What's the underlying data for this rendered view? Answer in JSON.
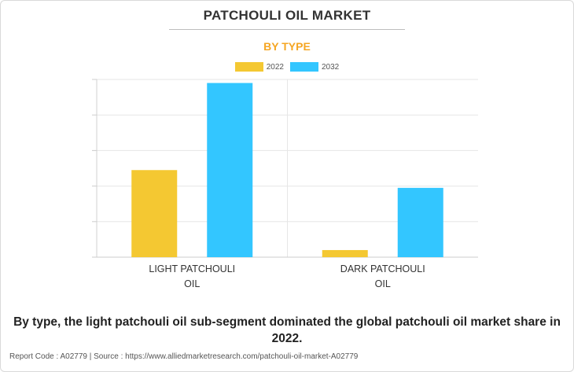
{
  "title": "PATCHOULI OIL MARKET",
  "subtitle": "BY TYPE",
  "caption": "By type, the light patchouli oil sub-segment dominated the global patchouli oil market share in 2022.",
  "footer": "Report Code : A02779  |  Source : https://www.alliedmarketresearch.com/patchouli-oil-market-A02779",
  "colors": {
    "2022": "#f4c832",
    "2032": "#33c6ff",
    "accent": "#f5a623"
  },
  "chart_data": {
    "type": "bar",
    "categories": [
      [
        "LIGHT PATCHOULI",
        "OIL"
      ],
      [
        "DARK PATCHOULI",
        "OIL"
      ]
    ],
    "series": [
      {
        "name": "2022",
        "values": [
          49,
          4
        ]
      },
      {
        "name": "2032",
        "values": [
          98,
          39
        ]
      }
    ],
    "ylim": [
      0,
      100
    ],
    "y_ticks": [
      0,
      20,
      40,
      60,
      80,
      100
    ],
    "tick_labels_shown": false,
    "grid": true,
    "legend_position": "top-center"
  }
}
